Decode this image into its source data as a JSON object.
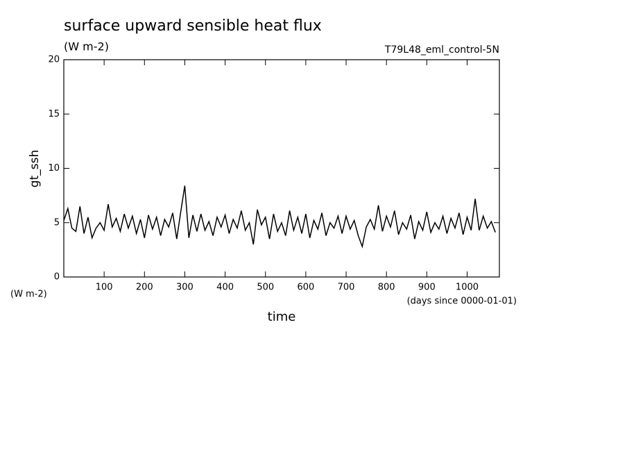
{
  "chart_data": {
    "type": "line",
    "title": "surface upward sensible heat flux",
    "subtitle": "(W m-2)",
    "experiment": "T79L48_eml_control-5N",
    "ylabel": "gt_ssh",
    "yunit": "(W m-2)",
    "xlabel": "time",
    "xunit": "(days since 0000-01-01)",
    "xlim": [
      0,
      1080
    ],
    "ylim": [
      0,
      20
    ],
    "xticks": [
      100,
      200,
      300,
      400,
      500,
      600,
      700,
      800,
      900,
      1000
    ],
    "yticks": [
      0,
      5,
      10,
      15,
      20
    ],
    "x": [
      0,
      10,
      20,
      30,
      40,
      50,
      60,
      70,
      80,
      90,
      100,
      110,
      120,
      130,
      140,
      150,
      160,
      170,
      180,
      190,
      200,
      210,
      220,
      230,
      240,
      250,
      260,
      270,
      280,
      290,
      300,
      310,
      320,
      330,
      340,
      350,
      360,
      370,
      380,
      390,
      400,
      410,
      420,
      430,
      440,
      450,
      460,
      470,
      480,
      490,
      500,
      510,
      520,
      530,
      540,
      550,
      560,
      570,
      580,
      590,
      600,
      610,
      620,
      630,
      640,
      650,
      660,
      670,
      680,
      690,
      700,
      710,
      720,
      730,
      740,
      750,
      760,
      770,
      780,
      790,
      800,
      810,
      820,
      830,
      840,
      850,
      860,
      870,
      880,
      890,
      900,
      910,
      920,
      930,
      940,
      950,
      960,
      970,
      980,
      990,
      1000,
      1010,
      1020,
      1030,
      1040,
      1050,
      1060,
      1070
    ],
    "series": [
      {
        "color": "#000000",
        "values": [
          5.2,
          6.3,
          4.5,
          4.2,
          6.5,
          4.0,
          5.5,
          3.6,
          4.5,
          5.0,
          4.3,
          6.7,
          4.6,
          5.4,
          4.2,
          5.8,
          4.5,
          5.6,
          4.0,
          5.3,
          3.6,
          5.7,
          4.4,
          5.5,
          3.8,
          5.3,
          4.6,
          5.9,
          3.5,
          6.0,
          8.4,
          3.6,
          5.7,
          4.2,
          5.8,
          4.3,
          5.1,
          3.8,
          5.5,
          4.6,
          5.7,
          4.0,
          5.3,
          4.5,
          6.1,
          4.3,
          5.0,
          3.0,
          6.2,
          4.8,
          5.5,
          3.5,
          5.8,
          4.2,
          5.0,
          3.8,
          6.1,
          4.3,
          5.5,
          4.0,
          5.8,
          3.6,
          5.2,
          4.4,
          5.9,
          3.8,
          5.0,
          4.5,
          5.6,
          4.0,
          5.6,
          4.4,
          5.2,
          3.8,
          2.8,
          4.6,
          5.3,
          4.4,
          6.6,
          4.2,
          5.6,
          4.6,
          6.1,
          3.9,
          5.0,
          4.4,
          5.7,
          3.5,
          5.1,
          4.3,
          6.0,
          4.1,
          5.0,
          4.4,
          5.6,
          4.0,
          5.4,
          4.5,
          5.9,
          3.9,
          5.5,
          4.3,
          7.2,
          4.3,
          5.6,
          4.5,
          5.1,
          4.1
        ]
      }
    ]
  }
}
